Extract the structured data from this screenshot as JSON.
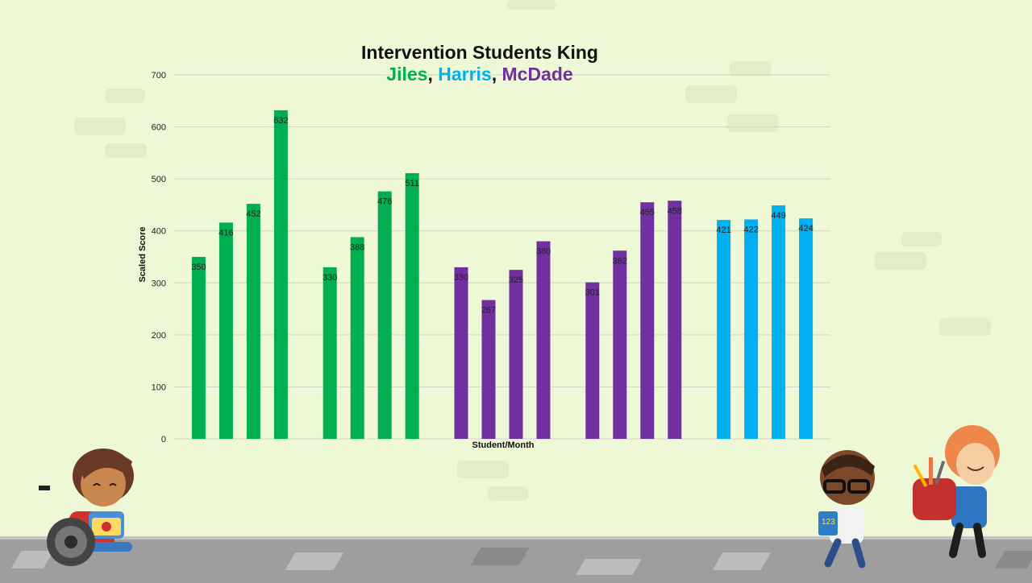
{
  "title_line1": "Intervention Students King",
  "title_names": [
    {
      "text": "Jiles",
      "color": "#00b050"
    },
    {
      "text": ", ",
      "color": "#111111"
    },
    {
      "text": "Harris",
      "color": "#00b0f0"
    },
    {
      "text": ", ",
      "color": "#111111"
    },
    {
      "text": "McDade",
      "color": "#7030a0"
    }
  ],
  "chart_data": {
    "type": "bar",
    "title": "Intervention Students King Jiles, Harris, McDade",
    "xlabel": "Student/Month",
    "ylabel": "Scaled Score",
    "ylim": [
      0,
      700
    ],
    "yticks": [
      0,
      100,
      200,
      300,
      400,
      500,
      600,
      700
    ],
    "grid": true,
    "groups": [
      {
        "values": [
          350,
          416,
          452,
          632
        ],
        "color": "#00b050"
      },
      {
        "values": [
          330,
          388,
          476,
          511
        ],
        "color": "#00b050"
      },
      {
        "values": [
          330,
          267,
          325,
          380
        ],
        "color": "#7030a0"
      },
      {
        "values": [
          301,
          362,
          455,
          458
        ],
        "color": "#7030a0"
      },
      {
        "values": [
          421,
          422,
          449,
          424
        ],
        "color": "#00b0f0"
      }
    ]
  }
}
